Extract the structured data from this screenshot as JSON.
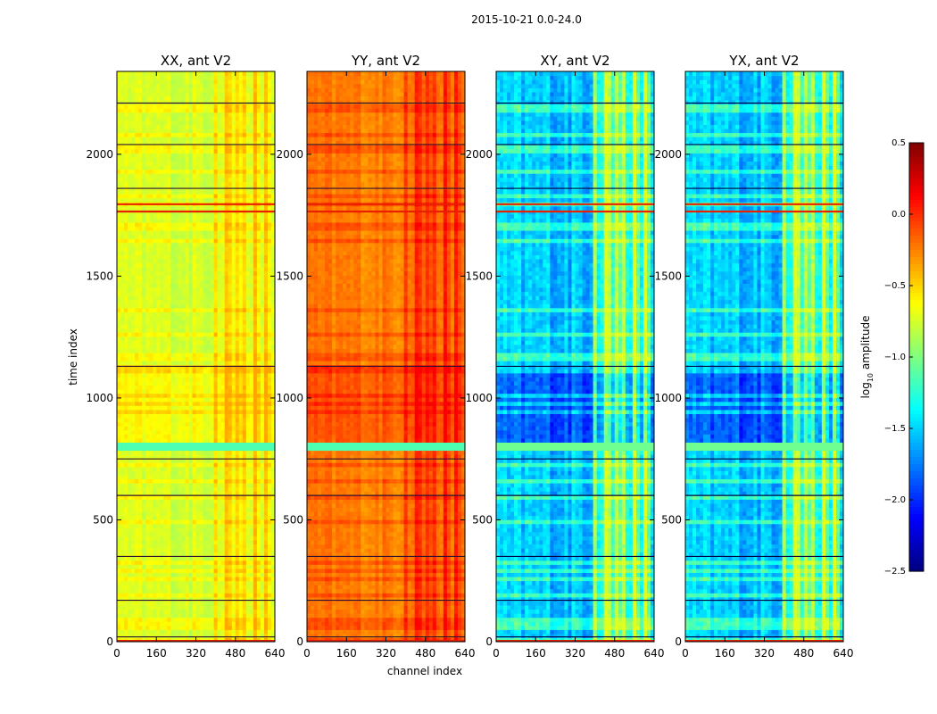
{
  "figure": {
    "suptitle": "2015-10-21 0.0-24.0",
    "xlabel": "channel index",
    "ylabel": "time index"
  },
  "chart_data": {
    "type": "heatmap",
    "panels": [
      {
        "title": "XX, ant V2",
        "base": "high-mid",
        "color_range": [
          -1.05,
          -0.45
        ]
      },
      {
        "title": "YY, ant V2",
        "base": "high",
        "color_range": [
          -0.55,
          0.05
        ]
      },
      {
        "title": "XY, ant V2",
        "base": "low",
        "color_range": [
          -2.2,
          -0.9
        ]
      },
      {
        "title": "YX, ant V2",
        "base": "low",
        "color_range": [
          -2.2,
          -0.9
        ]
      }
    ],
    "x_ticks": [
      0,
      160,
      320,
      480,
      640
    ],
    "x_tick_labels": [
      "0",
      "160",
      "320",
      "480",
      "640"
    ],
    "xlim": [
      0,
      640
    ],
    "y_ticks": [
      0,
      500,
      1000,
      1500,
      2000
    ],
    "y_tick_labels": [
      "0",
      "500",
      "1000",
      "1500",
      "2000"
    ],
    "ylim": [
      0,
      2340
    ],
    "colorbar": {
      "label_prefix": "log",
      "label_sub": "10",
      "label_suffix": " amplitude",
      "range": [
        -2.5,
        0.5
      ],
      "ticks": [
        0.5,
        0.0,
        -0.5,
        -1.0,
        -1.5,
        -2.0,
        -2.5
      ],
      "tick_labels": [
        "0.5",
        "0.0",
        "−0.5",
        "−1.0",
        "−1.5",
        "−2.0",
        "−2.5"
      ],
      "colormap": "jet"
    },
    "features": {
      "flag_band_time": [
        780,
        820
      ],
      "strong_rfi_channels": [
        400,
        440,
        460,
        490,
        520,
        560,
        600
      ],
      "dark_row_times": [
        20,
        170,
        350,
        600,
        750,
        1130,
        1860,
        2040,
        2210
      ],
      "red_row_times": [
        1765,
        1795
      ],
      "quiet_period_time": [
        820,
        1130
      ]
    }
  }
}
